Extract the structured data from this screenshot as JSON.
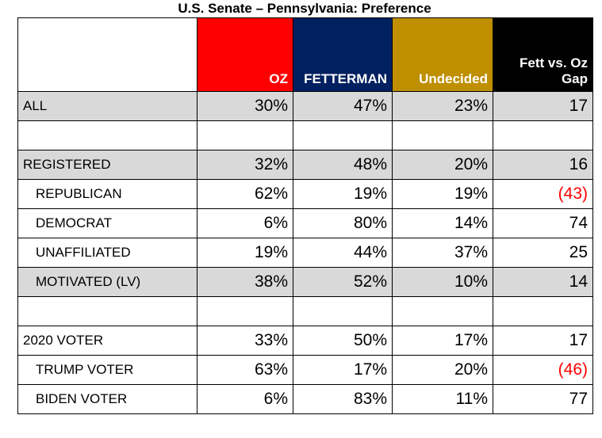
{
  "title": "U.S. Senate – Pennsylvania: Preference",
  "chart_data": {
    "type": "table",
    "title": "U.S. Senate – Pennsylvania: Preference",
    "columns": [
      {
        "label": "OZ",
        "color": "#ff0000"
      },
      {
        "label": "FETTERMAN",
        "color": "#002060"
      },
      {
        "label": "Undecided",
        "color": "#bf8f00"
      },
      {
        "label": "Fett vs. Oz Gap",
        "color": "#000000"
      }
    ],
    "rows": [
      {
        "label": "ALL",
        "values": [
          "30%",
          "47%",
          "23%",
          "17"
        ],
        "shaded": true,
        "indent": false,
        "gap_negative": false
      },
      {
        "label": "",
        "values": [
          "",
          "",
          "",
          ""
        ],
        "shaded": false,
        "indent": false,
        "gap_negative": false
      },
      {
        "label": "REGISTERED",
        "values": [
          "32%",
          "48%",
          "20%",
          "16"
        ],
        "shaded": true,
        "indent": false,
        "gap_negative": false
      },
      {
        "label": "REPUBLICAN",
        "values": [
          "62%",
          "19%",
          "19%",
          "(43)"
        ],
        "shaded": false,
        "indent": true,
        "gap_negative": true
      },
      {
        "label": "DEMOCRAT",
        "values": [
          "6%",
          "80%",
          "14%",
          "74"
        ],
        "shaded": false,
        "indent": true,
        "gap_negative": false
      },
      {
        "label": "UNAFFILIATED",
        "values": [
          "19%",
          "44%",
          "37%",
          "25"
        ],
        "shaded": false,
        "indent": true,
        "gap_negative": false
      },
      {
        "label": "MOTIVATED (LV)",
        "values": [
          "38%",
          "52%",
          "10%",
          "14"
        ],
        "shaded": true,
        "indent": true,
        "gap_negative": false
      },
      {
        "label": "",
        "values": [
          "",
          "",
          "",
          ""
        ],
        "shaded": false,
        "indent": false,
        "gap_negative": false
      },
      {
        "label": "2020 VOTER",
        "values": [
          "33%",
          "50%",
          "17%",
          "17"
        ],
        "shaded": false,
        "indent": false,
        "gap_negative": false
      },
      {
        "label": "TRUMP VOTER",
        "values": [
          "63%",
          "17%",
          "20%",
          "(46)"
        ],
        "shaded": false,
        "indent": true,
        "gap_negative": true
      },
      {
        "label": "BIDEN VOTER",
        "values": [
          "6%",
          "83%",
          "11%",
          "77"
        ],
        "shaded": false,
        "indent": true,
        "gap_negative": false
      }
    ]
  }
}
